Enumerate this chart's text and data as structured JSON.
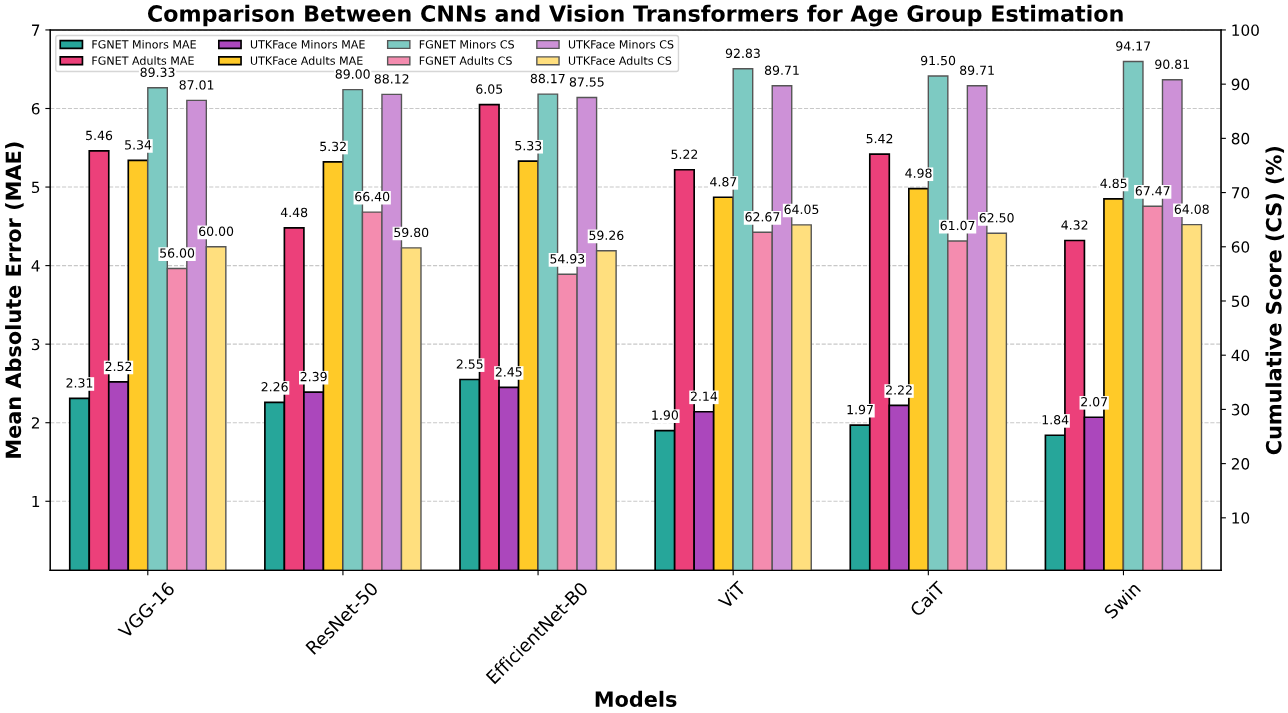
{
  "chart_data": {
    "type": "bar",
    "title": "Comparison Between CNNs and Vision Transformers for Age Group Estimation",
    "xlabel": "Models",
    "ylabel": "Mean Absolute Error (MAE)",
    "y2label": "Cumulative Score (CS) (%)",
    "categories": [
      "VGG-16",
      "ResNet-50",
      "EfficientNet-B0",
      "ViT",
      "CaiT",
      "Swin"
    ],
    "series": [
      {
        "name": "FGNET Minors MAE",
        "color": "#26a69a",
        "values": [
          2.31,
          2.26,
          2.55,
          1.9,
          1.97,
          1.84
        ],
        "value_labels": [
          "2.31",
          "2.26",
          "2.55",
          "1.90",
          "1.97",
          "1.84"
        ]
      },
      {
        "name": "FGNET Adults MAE",
        "color": "#ec407a",
        "values": [
          5.46,
          4.48,
          6.05,
          5.22,
          5.42,
          4.32
        ],
        "value_labels": [
          "5.46",
          "4.48",
          "6.05",
          "5.22",
          "5.42",
          "4.32"
        ]
      },
      {
        "name": "UTKFace Minors MAE",
        "color": "#ab47bc",
        "values": [
          2.52,
          2.39,
          2.45,
          2.14,
          2.22,
          2.07
        ],
        "value_labels": [
          "2.52",
          "2.39",
          "2.45",
          "2.14",
          "2.22",
          "2.07"
        ]
      },
      {
        "name": "UTKFace Adults MAE",
        "color": "#ffca28",
        "values": [
          5.34,
          5.32,
          5.33,
          4.87,
          4.98,
          4.85
        ],
        "value_labels": [
          "5.34",
          "5.32",
          "5.33",
          "4.87",
          "4.98",
          "4.85"
        ]
      },
      {
        "name": "FGNET Minors CS",
        "color": "#7dcac2",
        "axis": "y2",
        "values": [
          89.33,
          89.0,
          88.17,
          92.83,
          91.5,
          94.17
        ],
        "value_labels": [
          "89.33",
          "89.00",
          "88.17",
          "92.83",
          "91.50",
          "94.17"
        ]
      },
      {
        "name": "FGNET Adults CS",
        "color": "#f48caf",
        "axis": "y2",
        "values": [
          56.0,
          66.4,
          54.93,
          62.67,
          61.07,
          67.47
        ],
        "value_labels": [
          "56.00",
          "66.40",
          "54.93",
          "62.67",
          "61.07",
          "67.47"
        ]
      },
      {
        "name": "UTKFace Minors CS",
        "color": "#cd91d7",
        "axis": "y2",
        "values": [
          87.01,
          88.12,
          87.55,
          89.71,
          89.71,
          90.81
        ],
        "value_labels": [
          "87.01",
          "88.12",
          "87.55",
          "89.71",
          "89.71",
          "90.81"
        ]
      },
      {
        "name": "UTKFace Adults CS",
        "color": "#ffdf7e",
        "axis": "y2",
        "values": [
          60.0,
          59.8,
          59.26,
          64.05,
          62.5,
          64.08
        ],
        "value_labels": [
          "60.00",
          "59.80",
          "59.26",
          "64.05",
          "62.50",
          "64.08"
        ]
      }
    ],
    "ylim": [
      0.12,
      7.0
    ],
    "yticks": [
      1,
      2,
      3,
      4,
      5,
      6,
      7
    ],
    "y2lim": [
      0.3,
      100
    ],
    "y2ticks": [
      10,
      20,
      30,
      40,
      50,
      60,
      70,
      80,
      90,
      100
    ],
    "grid": "y",
    "legend": "top left"
  }
}
